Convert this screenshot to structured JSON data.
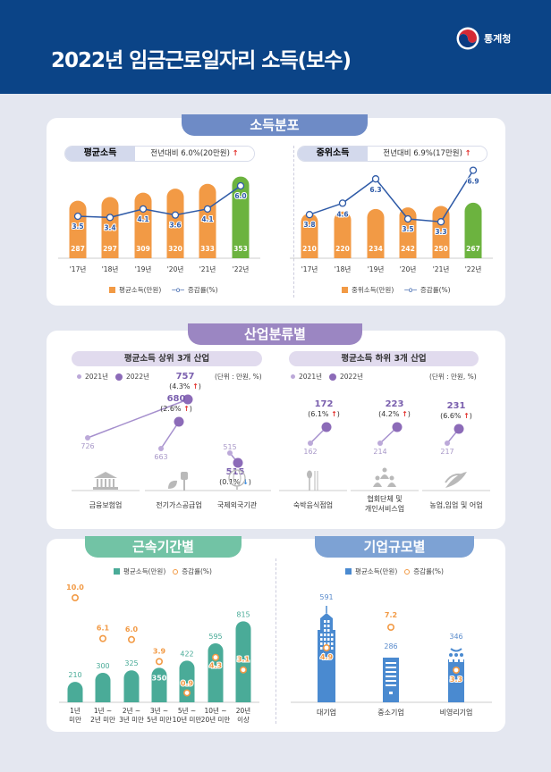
{
  "header": {
    "title": "2022년 임금근로일자리 소득(보수)",
    "logo_text": "통계청"
  },
  "colors": {
    "navy": "#0b4487",
    "orange": "#f29a45",
    "green": "#6cb33f",
    "line": "#2e5aa7",
    "purple": "#8c6bb8",
    "lightpurple": "#bca9d9",
    "teal": "#4aab98",
    "blue": "#4a8ad0"
  },
  "income_distribution": {
    "tab": "소득분포",
    "mean": {
      "label": "평균소득",
      "summary": "전년대비 6.0%(20만원)",
      "arrow": "↑",
      "legend_bar": "평균소득(만원)",
      "legend_line": "증감률(%)"
    },
    "median": {
      "label": "중위소득",
      "summary": "전년대비 6.9%(17만원)",
      "arrow": "↑",
      "legend_bar": "중위소득(만원)",
      "legend_line": "증감률(%)"
    }
  },
  "industry": {
    "tab": "산업분류별",
    "top": {
      "title": "평균소득 상위 3개 산업",
      "legend_2021": "2021년",
      "legend_2022": "2022년",
      "unit": "(단위 : 만원, %)",
      "items": [
        {
          "name": "금융보험업",
          "v2021": "726",
          "v2022": "757",
          "change": "(4.3%",
          "dir": "↑",
          "icon": "bank-icon"
        },
        {
          "name": "전기가스공급업",
          "v2021": "663",
          "v2022": "680",
          "change": "(2.6%",
          "dir": "↑",
          "icon": "plug-leaf-icon"
        },
        {
          "name": "국제외국기관",
          "v2021": "515",
          "v2022": "515",
          "change": "(0.1%",
          "dir": "↓",
          "icon": "globe-icon"
        }
      ]
    },
    "bottom": {
      "title": "평균소득 하위 3개 산업",
      "legend_2021": "2021년",
      "legend_2022": "2022년",
      "unit": "(단위 : 만원, %)",
      "items": [
        {
          "name": "숙박음식점업",
          "v2021": "162",
          "v2022": "172",
          "change": "(6.1%",
          "dir": "↑",
          "icon": "spoon-chopsticks-icon"
        },
        {
          "name": "협회단체 및\n개인서비스업",
          "v2021": "214",
          "v2022": "223",
          "change": "(4.2%",
          "dir": "↑",
          "icon": "people-group-icon"
        },
        {
          "name": "농업,임업 및 어업",
          "v2021": "217",
          "v2022": "231",
          "change": "(6.6%",
          "dir": "↑",
          "icon": "wheat-icon"
        }
      ]
    }
  },
  "tenure": {
    "tab": "근속기간별"
  },
  "firm_size": {
    "tab": "기업규모별"
  },
  "chart_data": [
    {
      "type": "bar",
      "title": "평균소득",
      "categories": [
        "'17년",
        "'18년",
        "'19년",
        "'20년",
        "'21년",
        "'22년"
      ],
      "series": [
        {
          "name": "평균소득(만원)",
          "type": "bar",
          "values": [
            287,
            297,
            309,
            320,
            333,
            353
          ]
        },
        {
          "name": "증감률(%)",
          "type": "line",
          "values": [
            3.5,
            3.4,
            4.1,
            3.6,
            4.1,
            6.0
          ]
        }
      ]
    },
    {
      "type": "bar",
      "title": "중위소득",
      "categories": [
        "'17년",
        "'18년",
        "'19년",
        "'20년",
        "'21년",
        "'22년"
      ],
      "series": [
        {
          "name": "중위소득(만원)",
          "type": "bar",
          "values": [
            210,
            220,
            234,
            242,
            250,
            267
          ]
        },
        {
          "name": "증감률(%)",
          "type": "line",
          "values": [
            3.8,
            4.6,
            6.3,
            3.5,
            3.3,
            6.9
          ]
        }
      ]
    },
    {
      "type": "bar",
      "title": "근속기간별",
      "categories": [
        "1년\n미만",
        "1년 ~\n2년 미만",
        "2년 ~\n3년 미만",
        "3년 ~\n5년 미만",
        "5년 ~\n10년 미만",
        "10년 ~\n20년 미만",
        "20년\n이상"
      ],
      "series": [
        {
          "name": "평균소득(만원)",
          "type": "bar",
          "values": [
            210,
            300,
            325,
            350,
            422,
            595,
            815
          ]
        },
        {
          "name": "증감률(%)",
          "type": "scatter",
          "values": [
            10.0,
            6.1,
            6.0,
            3.9,
            0.9,
            4.3,
            3.1
          ]
        }
      ]
    },
    {
      "type": "bar",
      "title": "기업규모별",
      "categories": [
        "대기업",
        "중소기업",
        "비영리기업"
      ],
      "series": [
        {
          "name": "평균소득(만원)",
          "type": "bar",
          "values": [
            591,
            286,
            346
          ]
        },
        {
          "name": "증감률(%)",
          "type": "scatter",
          "values": [
            4.9,
            7.2,
            3.3
          ]
        }
      ]
    }
  ]
}
